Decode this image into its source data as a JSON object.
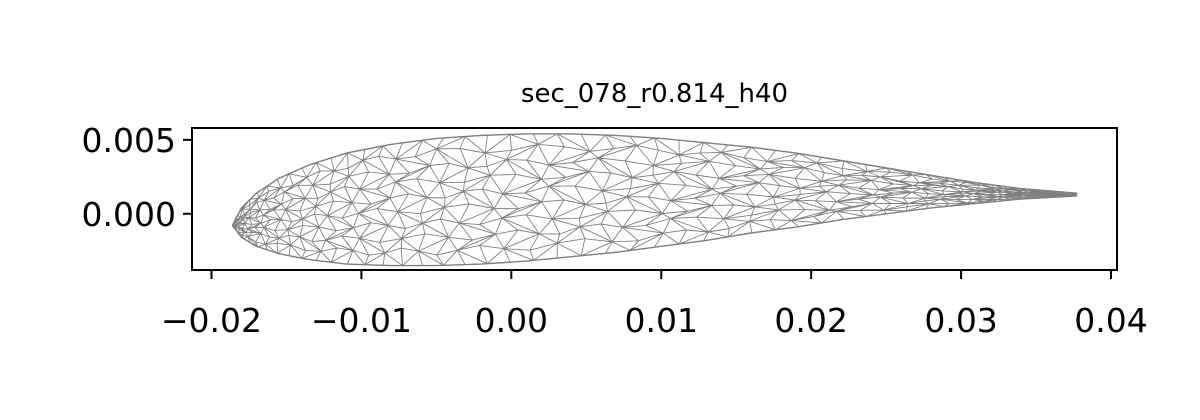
{
  "chart_data": {
    "type": "mesh",
    "title": "sec_078_r0.814_h40",
    "xlabel": "",
    "ylabel": "",
    "xlim": [
      -0.0213,
      0.0404
    ],
    "ylim": [
      -0.0038,
      0.0058
    ],
    "xticks": [
      -0.02,
      -0.01,
      0.0,
      0.01,
      0.02,
      0.03,
      0.04
    ],
    "xtick_labels": [
      "−0.02",
      "−0.01",
      "0.00",
      "0.01",
      "0.02",
      "0.03",
      "0.04"
    ],
    "yticks": [
      0.005,
      0.0
    ],
    "ytick_labels": [
      "0.005",
      "0.000"
    ],
    "grid": false,
    "mesh_color": "#808080",
    "airfoil": {
      "leading_edge": [
        -0.0186,
        -0.0008
      ],
      "trailing_edge": [
        0.0377,
        0.0013
      ],
      "upper_surface": [
        [
          -0.0186,
          -0.0008
        ],
        [
          -0.018,
          0.0004
        ],
        [
          -0.017,
          0.0014
        ],
        [
          -0.0155,
          0.0024
        ],
        [
          -0.0135,
          0.0033
        ],
        [
          -0.011,
          0.0041
        ],
        [
          -0.008,
          0.0047
        ],
        [
          -0.005,
          0.0051
        ],
        [
          -0.002,
          0.0053
        ],
        [
          0.001,
          0.0054
        ],
        [
          0.004,
          0.0054
        ],
        [
          0.007,
          0.0053
        ],
        [
          0.01,
          0.0051
        ],
        [
          0.013,
          0.0048
        ],
        [
          0.016,
          0.0045
        ],
        [
          0.019,
          0.0041
        ],
        [
          0.022,
          0.0036
        ],
        [
          0.025,
          0.0031
        ],
        [
          0.028,
          0.0026
        ],
        [
          0.031,
          0.0021
        ],
        [
          0.034,
          0.0017
        ],
        [
          0.0377,
          0.0014
        ]
      ],
      "lower_surface": [
        [
          -0.0186,
          -0.0008
        ],
        [
          -0.018,
          -0.0016
        ],
        [
          -0.017,
          -0.0022
        ],
        [
          -0.0155,
          -0.0027
        ],
        [
          -0.0135,
          -0.0031
        ],
        [
          -0.011,
          -0.0034
        ],
        [
          -0.008,
          -0.0035
        ],
        [
          -0.005,
          -0.0035
        ],
        [
          -0.002,
          -0.0034
        ],
        [
          0.001,
          -0.0032
        ],
        [
          0.004,
          -0.0029
        ],
        [
          0.007,
          -0.0026
        ],
        [
          0.01,
          -0.0022
        ],
        [
          0.013,
          -0.0018
        ],
        [
          0.016,
          -0.0013
        ],
        [
          0.019,
          -0.0009
        ],
        [
          0.022,
          -0.0004
        ],
        [
          0.025,
          0.0
        ],
        [
          0.028,
          0.0004
        ],
        [
          0.031,
          0.0007
        ],
        [
          0.034,
          0.001
        ],
        [
          0.0377,
          0.0012
        ]
      ]
    }
  }
}
